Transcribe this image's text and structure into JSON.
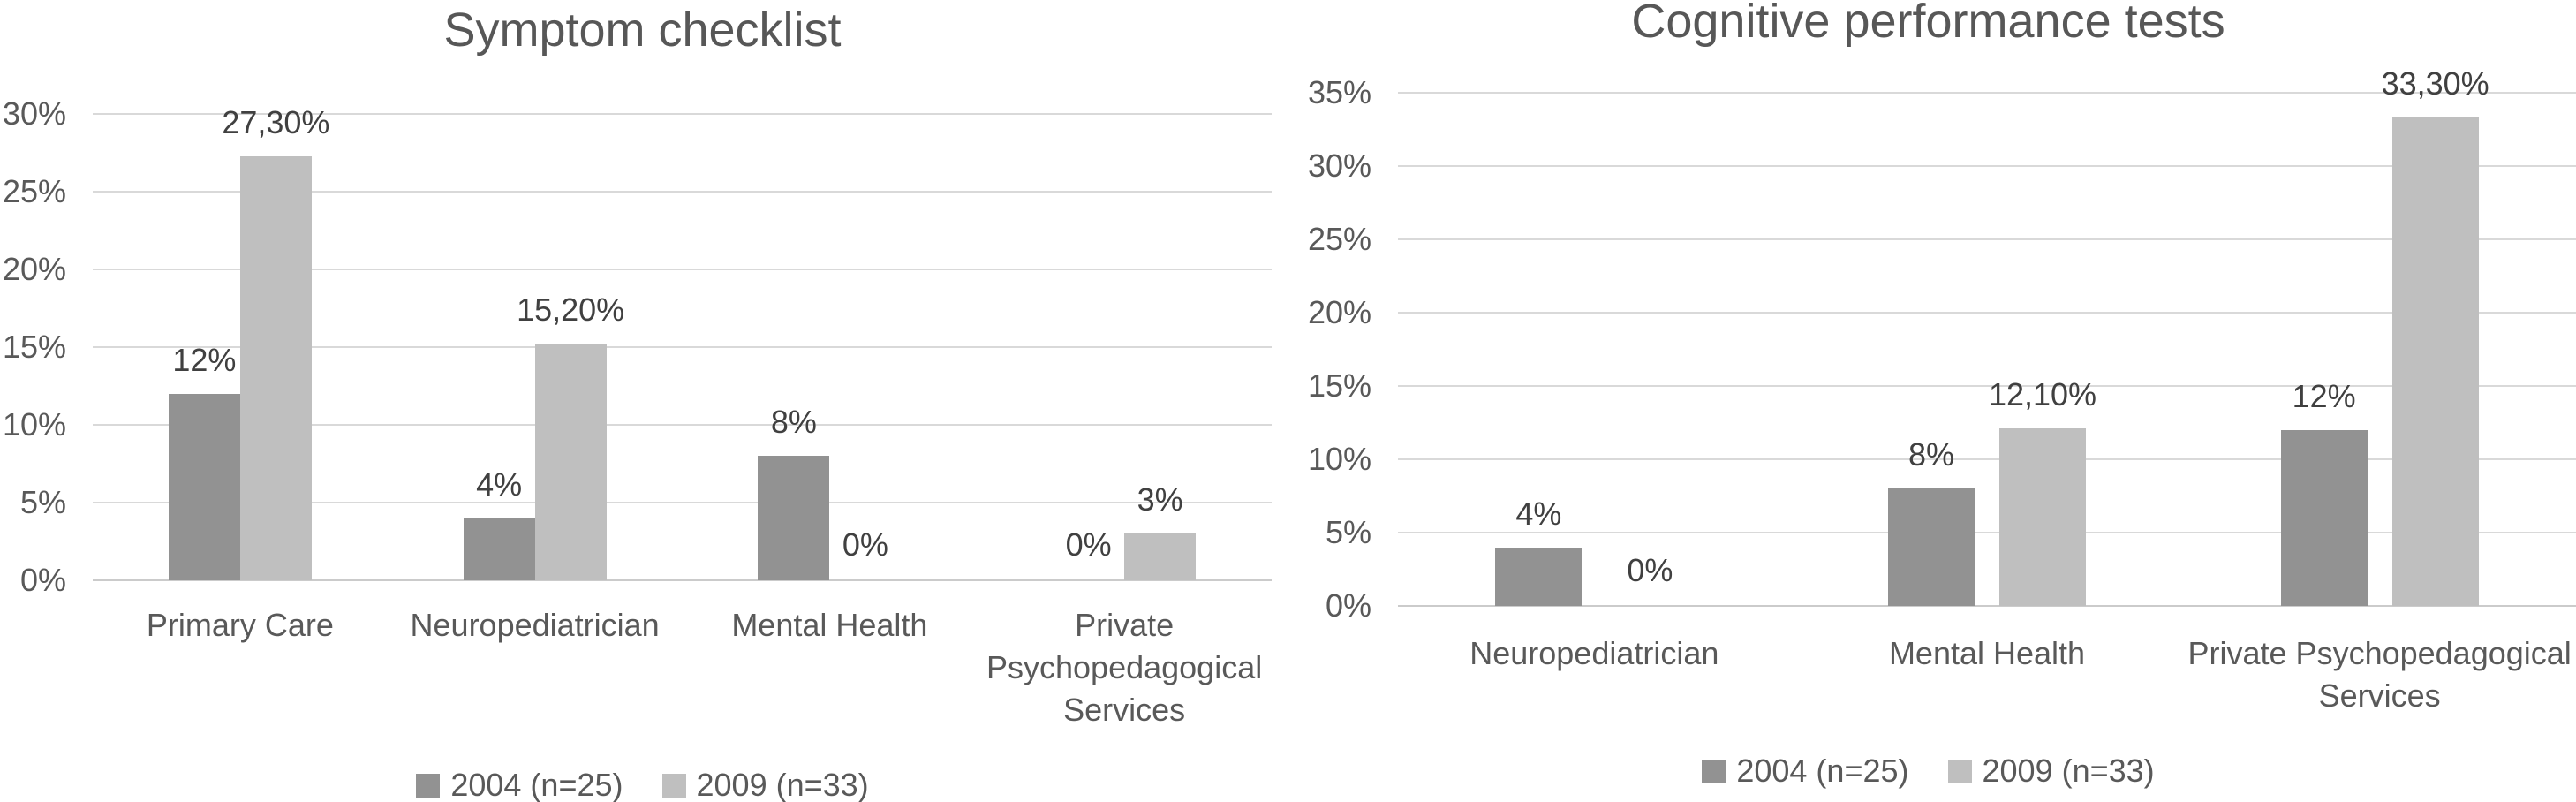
{
  "figure": {
    "background": "#ffffff",
    "text_color": "#595959",
    "data_label_color": "#404040",
    "gridline_color": "#d9d9d9"
  },
  "chart_data": [
    {
      "type": "bar",
      "title": "Symptom checklist",
      "xlabel": "",
      "ylabel": "",
      "ylim": [
        0,
        30
      ],
      "ytick_step": 5,
      "grid": true,
      "legend_position": "bottom",
      "yticks": [
        "0%",
        "5%",
        "10%",
        "15%",
        "20%",
        "25%",
        "30%"
      ],
      "categories": [
        "Primary Care",
        "Neuropediatrician",
        "Mental Health",
        "Private Psychopedagogical Services"
      ],
      "series": [
        {
          "name": "2004 (n=25)",
          "color": "#929292",
          "values": [
            12,
            4,
            8,
            0
          ],
          "labels": [
            "12%",
            "4%",
            "8%",
            "0%"
          ]
        },
        {
          "name": "2009 (n=33)",
          "color": "#bfbfbf",
          "values": [
            27.3,
            15.2,
            0,
            3
          ],
          "labels": [
            "27,30%",
            "15,20%",
            "0%",
            "3%"
          ]
        }
      ]
    },
    {
      "type": "bar",
      "title": "Cognitive performance tests",
      "xlabel": "",
      "ylabel": "",
      "ylim": [
        0,
        35
      ],
      "ytick_step": 5,
      "grid": true,
      "legend_position": "bottom",
      "yticks": [
        "0%",
        "5%",
        "10%",
        "15%",
        "20%",
        "25%",
        "30%",
        "35%"
      ],
      "categories": [
        "Neuropediatrician",
        "Mental Health",
        "Private Psychopedagogical Services"
      ],
      "series": [
        {
          "name": "2004 (n=25)",
          "color": "#929292",
          "values": [
            4,
            8,
            12
          ],
          "labels": [
            "4%",
            "8%",
            "12%"
          ]
        },
        {
          "name": "2009 (n=33)",
          "color": "#bfbfbf",
          "values": [
            0,
            12.1,
            33.3
          ],
          "labels": [
            "0%",
            "12,10%",
            "33,30%"
          ]
        }
      ]
    }
  ]
}
